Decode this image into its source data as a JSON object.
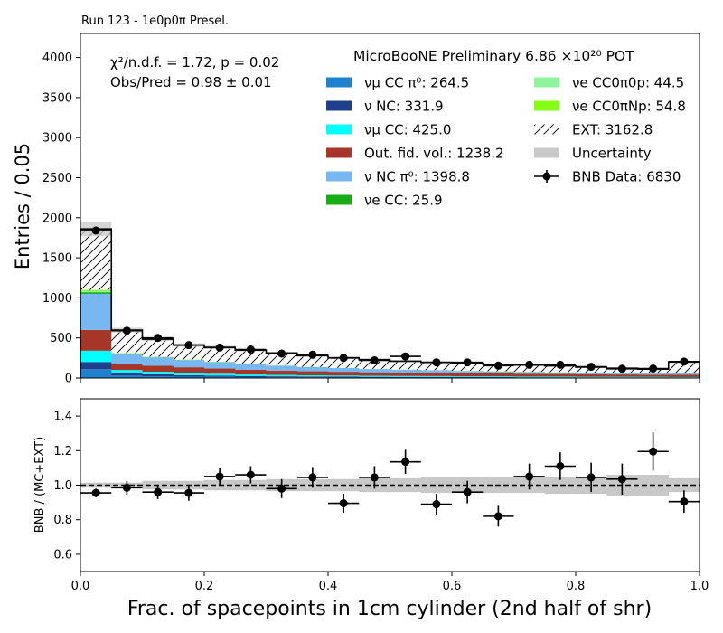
{
  "run_label": "Run 123 - 1e0p0π Presel.",
  "chart_data": [
    {
      "type": "stacked-histogram",
      "ylabel": "Entries / 0.05",
      "xlim": [
        0,
        1
      ],
      "ylim": [
        0,
        4300
      ],
      "yticks": [
        0,
        500,
        1000,
        1500,
        2000,
        2500,
        3000,
        3500,
        4000
      ],
      "stats_line1": "χ²/n.d.f. = 1.72, p = 0.02",
      "stats_line2": "Obs/Pred = 0.98 ± 0.01",
      "legend_title": "MicroBooNE Preliminary 6.86 ×10²⁰ POT",
      "bin_edges": [
        0.0,
        0.05,
        0.1,
        0.15,
        0.2,
        0.25,
        0.3,
        0.35,
        0.4,
        0.45,
        0.5,
        0.55,
        0.6,
        0.65,
        0.7,
        0.75,
        0.8,
        0.85,
        0.9,
        0.95,
        1.0
      ],
      "series": [
        {
          "name": "νμ CC π⁰: 264.5",
          "color": "#1f82cf",
          "values": [
            110,
            30,
            22,
            17,
            14,
            11,
            9,
            8,
            7,
            6,
            5,
            5,
            4,
            4,
            3,
            3,
            2,
            2,
            2,
            1
          ]
        },
        {
          "name": "ν NC: 331.9",
          "color": "#1f3f8c",
          "values": [
            90,
            30,
            24,
            19,
            17,
            14,
            12,
            11,
            10,
            9,
            8,
            8,
            7,
            7,
            6,
            6,
            5,
            5,
            5,
            4
          ]
        },
        {
          "name": "νμ CC: 425.0",
          "color": "#00ffff",
          "values": [
            140,
            40,
            32,
            26,
            22,
            19,
            17,
            15,
            14,
            13,
            12,
            11,
            10,
            10,
            9,
            9,
            8,
            8,
            7,
            7
          ]
        },
        {
          "name": "Out. fid. vol.: 1238.2",
          "color": "#a63627",
          "values": [
            260,
            80,
            75,
            72,
            65,
            60,
            55,
            50,
            47,
            44,
            42,
            40,
            38,
            36,
            34,
            32,
            30,
            29,
            28,
            30
          ]
        },
        {
          "name": "ν NC π⁰: 1398.8",
          "color": "#77b8f2",
          "values": [
            450,
            120,
            105,
            90,
            80,
            70,
            60,
            52,
            46,
            40,
            36,
            32,
            28,
            25,
            23,
            20,
            18,
            16,
            14,
            20
          ]
        },
        {
          "name": "νe CC: 25.9",
          "color": "#16ad16",
          "values": [
            20,
            2,
            1,
            1,
            1,
            0,
            0,
            0,
            0,
            0,
            0,
            0,
            0,
            0,
            0,
            0,
            0,
            0,
            0,
            1
          ]
        },
        {
          "name": "νe CC0π0p: 44.5",
          "color": "#8ff59a",
          "values": [
            18,
            6,
            4,
            3,
            2,
            2,
            1,
            1,
            1,
            1,
            1,
            1,
            1,
            1,
            1,
            0,
            0,
            0,
            0,
            1
          ]
        },
        {
          "name": "νe CC0πNp: 54.8",
          "color": "#84ff14",
          "values": [
            12,
            4,
            3,
            3,
            2,
            2,
            2,
            2,
            2,
            2,
            2,
            2,
            2,
            2,
            2,
            2,
            2,
            2,
            2,
            3
          ]
        },
        {
          "name": "EXT: 3162.8",
          "color": "#ffffff",
          "hatch": true,
          "values": [
            760,
            285,
            218,
            180,
            180,
            170,
            155,
            140,
            125,
            115,
            103,
            96,
            92,
            85,
            84,
            80,
            71,
            60,
            53,
            133
          ]
        }
      ],
      "uncertainty_label": "Uncertainty",
      "uncertainty_color": "#c8c8c8",
      "uncertainty_halfwidth": [
        90,
        30,
        25,
        22,
        20,
        18,
        16,
        15,
        14,
        13,
        12,
        11,
        11,
        10,
        10,
        9,
        9,
        8,
        8,
        12
      ],
      "data_label": "BNB Data: 6830",
      "data_values": [
        1840,
        590,
        500,
        410,
        380,
        355,
        305,
        290,
        250,
        220,
        270,
        195,
        195,
        155,
        165,
        165,
        140,
        115,
        118,
        205
      ]
    },
    {
      "type": "ratio",
      "ylabel": "BNB / (MC+EXT)",
      "xlabel": "Frac. of spacepoints in 1cm cylinder (2nd half of shr)",
      "xlim": [
        0,
        1
      ],
      "ylim": [
        0.5,
        1.5
      ],
      "yticks": [
        0.6,
        0.8,
        1.0,
        1.2,
        1.4
      ],
      "xticks": [
        0.0,
        0.2,
        0.4,
        0.6,
        0.8,
        1.0
      ],
      "band_halfwidth": [
        0.015,
        0.015,
        0.025,
        0.025,
        0.03,
        0.03,
        0.035,
        0.035,
        0.035,
        0.04,
        0.04,
        0.045,
        0.045,
        0.045,
        0.045,
        0.05,
        0.05,
        0.06,
        0.06,
        0.04
      ],
      "ratio_values": [
        0.955,
        0.985,
        0.96,
        0.955,
        1.05,
        1.06,
        0.98,
        1.045,
        0.895,
        1.045,
        1.135,
        0.89,
        0.96,
        0.82,
        1.05,
        1.11,
        1.045,
        1.035,
        1.195,
        0.905
      ],
      "ratio_errors": [
        0.025,
        0.04,
        0.04,
        0.045,
        0.05,
        0.05,
        0.055,
        0.06,
        0.055,
        0.065,
        0.07,
        0.06,
        0.065,
        0.06,
        0.075,
        0.08,
        0.085,
        0.09,
        0.11,
        0.065
      ]
    }
  ]
}
